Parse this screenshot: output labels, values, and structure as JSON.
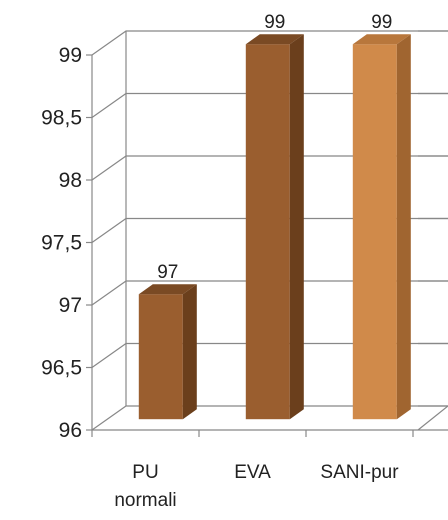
{
  "chart_data": {
    "type": "bar",
    "style": "3d-column",
    "categories": [
      "PU normali",
      "EVA",
      "SANI-pur"
    ],
    "category_lines": [
      [
        "PU",
        "normali"
      ],
      [
        "EVA"
      ],
      [
        "SANI-pur"
      ]
    ],
    "values": [
      97,
      99,
      99
    ],
    "data_labels": [
      "97",
      "99",
      "99"
    ],
    "ylim": [
      96,
      99
    ],
    "y_ticks": [
      96,
      96.5,
      97,
      97.5,
      98,
      98.5,
      99
    ],
    "y_tick_labels": [
      "96",
      "96,5",
      "97",
      "97,5",
      "98",
      "98,5",
      "99"
    ],
    "grid": true,
    "legend": "none",
    "bar_colors": [
      "#9a5e2f",
      "#9a5e2f",
      "#d08a4a"
    ],
    "bar_side_colors": [
      "#6b3f1c",
      "#6b3f1c",
      "#a06530"
    ],
    "bar_top_colors": [
      "#7a4a24",
      "#7a4a24",
      "#b8773c"
    ]
  }
}
